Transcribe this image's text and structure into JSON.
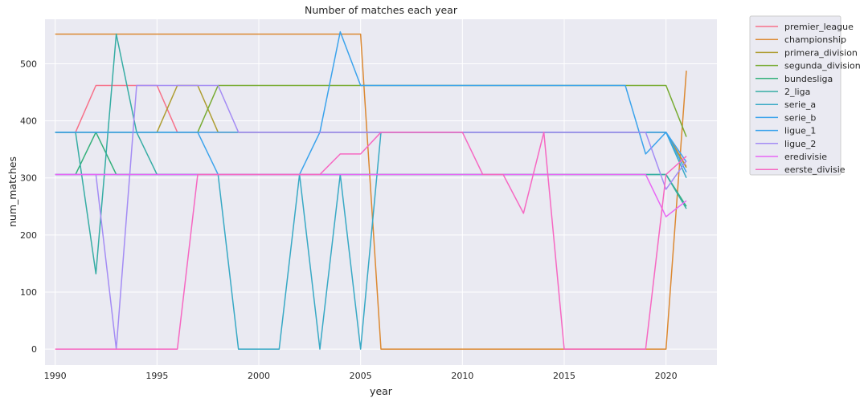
{
  "chart_data": {
    "type": "line",
    "title": "Number of matches each year",
    "xlabel": "year",
    "ylabel": "num_matches",
    "xlim": [
      1989.5,
      2022.5
    ],
    "ylim": [
      -28,
      578
    ],
    "xticks": [
      1990,
      1995,
      2000,
      2005,
      2010,
      2015,
      2020
    ],
    "yticks": [
      0,
      100,
      200,
      300,
      400,
      500
    ],
    "grid": true,
    "background": "#eaeaf2",
    "legend_position": "outside-top-right",
    "x": [
      1990,
      1991,
      1992,
      1993,
      1994,
      1995,
      1996,
      1997,
      1998,
      1999,
      2000,
      2001,
      2002,
      2003,
      2004,
      2005,
      2006,
      2007,
      2008,
      2009,
      2010,
      2011,
      2012,
      2013,
      2014,
      2015,
      2016,
      2017,
      2018,
      2019,
      2020,
      2021
    ],
    "series": [
      {
        "name": "premier_league",
        "color": "#f77189",
        "values": [
          380,
          380,
          462,
          462,
          462,
          462,
          380,
          380,
          380,
          380,
          380,
          380,
          380,
          380,
          380,
          380,
          380,
          380,
          380,
          380,
          380,
          380,
          380,
          380,
          380,
          380,
          380,
          380,
          380,
          380,
          380,
          320
        ]
      },
      {
        "name": "championship",
        "color": "#dc8932",
        "values": [
          552,
          552,
          552,
          552,
          552,
          552,
          552,
          552,
          552,
          552,
          552,
          552,
          552,
          552,
          552,
          552,
          0,
          0,
          0,
          0,
          0,
          0,
          0,
          0,
          0,
          0,
          0,
          0,
          0,
          0,
          0,
          488
        ]
      },
      {
        "name": "primera_division",
        "color": "#ae9d31",
        "values": [
          380,
          380,
          380,
          380,
          380,
          380,
          462,
          462,
          380,
          380,
          380,
          380,
          380,
          380,
          380,
          380,
          380,
          380,
          380,
          380,
          380,
          380,
          380,
          380,
          380,
          380,
          380,
          380,
          380,
          380,
          380,
          318
        ]
      },
      {
        "name": "segunda_division",
        "color": "#77ab31",
        "values": [
          380,
          380,
          380,
          380,
          380,
          380,
          380,
          380,
          462,
          462,
          462,
          462,
          462,
          462,
          462,
          462,
          462,
          462,
          462,
          462,
          462,
          462,
          462,
          462,
          462,
          462,
          462,
          462,
          462,
          462,
          462,
          372
        ]
      },
      {
        "name": "bundesliga",
        "color": "#33b07a",
        "values": [
          306,
          306,
          380,
          306,
          306,
          306,
          306,
          306,
          306,
          306,
          306,
          306,
          306,
          306,
          306,
          306,
          306,
          306,
          306,
          306,
          306,
          306,
          306,
          306,
          306,
          306,
          306,
          306,
          306,
          306,
          306,
          250
        ]
      },
      {
        "name": "2_liga",
        "color": "#36ada4",
        "values": [
          380,
          380,
          132,
          552,
          380,
          306,
          306,
          306,
          306,
          306,
          306,
          306,
          306,
          306,
          306,
          306,
          306,
          306,
          306,
          306,
          306,
          306,
          306,
          306,
          306,
          306,
          306,
          306,
          306,
          306,
          306,
          246
        ]
      },
      {
        "name": "serie_a",
        "color": "#38a9c5",
        "values": [
          306,
          306,
          306,
          306,
          306,
          306,
          306,
          306,
          306,
          0,
          0,
          0,
          306,
          0,
          306,
          0,
          380,
          380,
          380,
          380,
          380,
          380,
          380,
          380,
          380,
          380,
          380,
          380,
          380,
          380,
          380,
          300
        ]
      },
      {
        "name": "serie_b",
        "color": "#3ba3ec",
        "values": [
          380,
          380,
          380,
          380,
          380,
          380,
          380,
          380,
          380,
          380,
          380,
          380,
          380,
          380,
          556,
          462,
          462,
          462,
          462,
          462,
          462,
          462,
          462,
          462,
          462,
          462,
          462,
          462,
          462,
          342,
          380,
          310
        ]
      },
      {
        "name": "ligue_1",
        "color": "#3ba3ec",
        "values": [
          380,
          380,
          380,
          380,
          380,
          380,
          380,
          380,
          306,
          306,
          306,
          306,
          306,
          380,
          380,
          380,
          380,
          380,
          380,
          380,
          380,
          380,
          380,
          380,
          380,
          380,
          380,
          380,
          380,
          380,
          380,
          328
        ]
      },
      {
        "name": "ligue_2",
        "color": "#a48cf4",
        "values": [
          306,
          306,
          306,
          0,
          462,
          462,
          462,
          462,
          462,
          380,
          380,
          380,
          380,
          380,
          380,
          380,
          380,
          380,
          380,
          380,
          380,
          380,
          380,
          380,
          380,
          380,
          380,
          380,
          380,
          380,
          280,
          330
        ]
      },
      {
        "name": "eredivisie",
        "color": "#e866f4",
        "values": [
          306,
          306,
          306,
          306,
          306,
          306,
          306,
          306,
          306,
          306,
          306,
          306,
          306,
          306,
          306,
          306,
          306,
          306,
          306,
          306,
          306,
          306,
          306,
          306,
          306,
          306,
          306,
          306,
          306,
          306,
          232,
          260
        ]
      },
      {
        "name": "eerste_divisie",
        "color": "#f668c2",
        "values": [
          0,
          0,
          0,
          0,
          0,
          0,
          0,
          306,
          306,
          306,
          306,
          306,
          306,
          306,
          342,
          342,
          380,
          380,
          380,
          380,
          380,
          306,
          306,
          238,
          380,
          0,
          0,
          0,
          0,
          0,
          306,
          338
        ]
      }
    ]
  }
}
